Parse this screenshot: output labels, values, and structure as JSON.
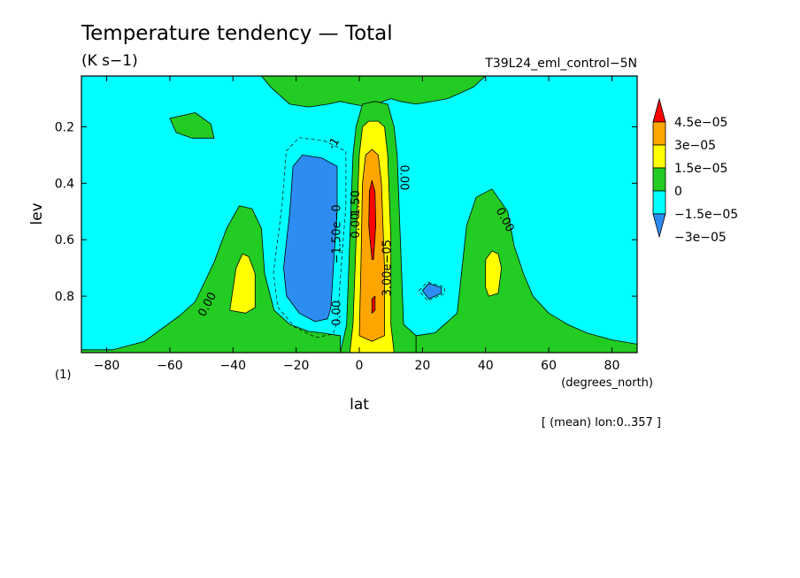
{
  "chart_data": {
    "type": "contour",
    "title": "Temperature tendency — Total",
    "units_label": "(K s−1)",
    "run_label": "T39L24_eml_control−5N",
    "xlabel": "lat",
    "x_units_label": "(degrees_north)",
    "ylabel": "lev",
    "y_units_label": "(1)",
    "footnote": "[ (mean) lon:0..357 ]",
    "xlim": [
      -88,
      88
    ],
    "ylim": [
      1.0,
      0.02
    ],
    "y_axis": "inverted",
    "x_ticks": [
      {
        "value": -80,
        "label": "−80"
      },
      {
        "value": -60,
        "label": "−60"
      },
      {
        "value": -40,
        "label": "−40"
      },
      {
        "value": -20,
        "label": "−20"
      },
      {
        "value": 0,
        "label": "0"
      },
      {
        "value": 20,
        "label": "20"
      },
      {
        "value": 40,
        "label": "40"
      },
      {
        "value": 60,
        "label": "60"
      },
      {
        "value": 80,
        "label": "80"
      }
    ],
    "y_ticks": [
      {
        "value": 0.2,
        "label": "0.2"
      },
      {
        "value": 0.4,
        "label": "0.4"
      },
      {
        "value": 0.6,
        "label": "0.6"
      },
      {
        "value": 0.8,
        "label": "0.8"
      }
    ],
    "colorbar": {
      "labels": [
        "4.5e−05",
        "3e−05",
        "1.5e−05",
        "0",
        "−1.5e−05",
        "−3e−05"
      ],
      "levels": [
        -3e-05,
        -1.5e-05,
        0,
        1.5e-05,
        3e-05,
        4.5e-05
      ],
      "colors": [
        "#2d8cf0",
        "#00ffff",
        "#22cc22",
        "#ffff00",
        "#ffa500",
        "#ff0000"
      ]
    },
    "contour_labels": [
      {
        "lat": -48,
        "lev": 0.83,
        "text": "0.00",
        "rotate": -62
      },
      {
        "lat": -7,
        "lev": 0.58,
        "text": "−1.50e−0",
        "rotate": -90
      },
      {
        "lat": -7,
        "lev": 0.86,
        "text": "0.00",
        "rotate": -90
      },
      {
        "lat": -8,
        "lev": 0.26,
        "text": "-1",
        "rotate": -60
      },
      {
        "lat": -1,
        "lev": 0.55,
        "text": "0.00",
        "rotate": -90
      },
      {
        "lat": -1,
        "lev": 0.47,
        "text": "1.50",
        "rotate": -90
      },
      {
        "lat": 9,
        "lev": 0.7,
        "text": "3.00e−05",
        "rotate": -90
      },
      {
        "lat": 14,
        "lev": 0.38,
        "text": "0.00",
        "rotate": 90
      },
      {
        "lat": 46,
        "lev": 0.53,
        "text": "0.00",
        "rotate": 62
      }
    ],
    "regions": [
      {
        "name": "green-top-band",
        "color": "#22cc22",
        "points": [
          [
            -31,
            0.02
          ],
          [
            40,
            0.02
          ],
          [
            36,
            0.06
          ],
          [
            28,
            0.1
          ],
          [
            18,
            0.12
          ],
          [
            13,
            0.11
          ],
          [
            10,
            0.1
          ],
          [
            5,
            0.12
          ],
          [
            3,
            0.13
          ],
          [
            -2,
            0.12
          ],
          [
            -6,
            0.11
          ],
          [
            -10,
            0.12
          ],
          [
            -16,
            0.13
          ],
          [
            -22,
            0.12
          ],
          [
            -28,
            0.06
          ]
        ]
      },
      {
        "name": "green-top-left-blob",
        "color": "#22cc22",
        "points": [
          [
            -60,
            0.17
          ],
          [
            -52,
            0.15
          ],
          [
            -47,
            0.19
          ],
          [
            -46,
            0.24
          ],
          [
            -53,
            0.24
          ],
          [
            -58,
            0.22
          ]
        ]
      },
      {
        "name": "green-left-mountain",
        "color": "#22cc22",
        "points": [
          [
            -88,
            0.99
          ],
          [
            -78,
            0.99
          ],
          [
            -68,
            0.96
          ],
          [
            -57,
            0.87
          ],
          [
            -52,
            0.82
          ],
          [
            -46,
            0.68
          ],
          [
            -42,
            0.56
          ],
          [
            -38,
            0.48
          ],
          [
            -34,
            0.49
          ],
          [
            -31,
            0.56
          ],
          [
            -30,
            0.72
          ],
          [
            -27,
            0.85
          ],
          [
            -22,
            0.9
          ],
          [
            -16,
            0.925
          ],
          [
            -12,
            0.93
          ],
          [
            -6,
            0.94
          ],
          [
            -6,
            1.0
          ],
          [
            -88,
            1.0
          ]
        ]
      },
      {
        "name": "green-equatorial-column",
        "color": "#22cc22",
        "points": [
          [
            -6,
            1.0
          ],
          [
            -4,
            0.9
          ],
          [
            -3,
            0.6
          ],
          [
            -2,
            0.3
          ],
          [
            -1,
            0.2
          ],
          [
            1,
            0.12
          ],
          [
            5,
            0.11
          ],
          [
            9,
            0.12
          ],
          [
            11,
            0.2
          ],
          [
            12,
            0.3
          ],
          [
            13,
            0.6
          ],
          [
            14,
            0.9
          ],
          [
            18,
            0.94
          ],
          [
            18,
            1.0
          ]
        ]
      },
      {
        "name": "green-right-mountain",
        "color": "#22cc22",
        "points": [
          [
            18,
            1.0
          ],
          [
            18,
            0.94
          ],
          [
            24,
            0.93
          ],
          [
            27,
            0.9
          ],
          [
            31,
            0.86
          ],
          [
            34,
            0.55
          ],
          [
            37,
            0.45
          ],
          [
            42,
            0.42
          ],
          [
            47,
            0.5
          ],
          [
            49,
            0.62
          ],
          [
            52,
            0.72
          ],
          [
            55,
            0.8
          ],
          [
            60,
            0.86
          ],
          [
            66,
            0.9
          ],
          [
            72,
            0.93
          ],
          [
            80,
            0.955
          ],
          [
            88,
            0.97
          ],
          [
            88,
            1.0
          ]
        ]
      },
      {
        "name": "yellow-equatorial",
        "color": "#ffff00",
        "points": [
          [
            -3,
            1.0
          ],
          [
            -2,
            0.9
          ],
          [
            -1,
            0.6
          ],
          [
            0,
            0.3
          ],
          [
            1,
            0.2
          ],
          [
            3,
            0.18
          ],
          [
            6,
            0.18
          ],
          [
            8,
            0.2
          ],
          [
            9,
            0.3
          ],
          [
            10,
            0.6
          ],
          [
            10,
            0.9
          ],
          [
            11,
            1.0
          ]
        ]
      },
      {
        "name": "yellow-left",
        "color": "#ffff00",
        "points": [
          [
            -41,
            0.85
          ],
          [
            -39,
            0.7
          ],
          [
            -37,
            0.65
          ],
          [
            -35,
            0.66
          ],
          [
            -33,
            0.72
          ],
          [
            -33,
            0.84
          ],
          [
            -36,
            0.86
          ]
        ]
      },
      {
        "name": "yellow-right",
        "color": "#ffff00",
        "points": [
          [
            40,
            0.77
          ],
          [
            40,
            0.67
          ],
          [
            42,
            0.64
          ],
          [
            44,
            0.65
          ],
          [
            45,
            0.7
          ],
          [
            44,
            0.79
          ],
          [
            41,
            0.8
          ]
        ]
      },
      {
        "name": "orange-equatorial",
        "color": "#ffa500",
        "points": [
          [
            0,
            0.94
          ],
          [
            0.5,
            0.7
          ],
          [
            1,
            0.4
          ],
          [
            2,
            0.3
          ],
          [
            4,
            0.28
          ],
          [
            6,
            0.3
          ],
          [
            7,
            0.4
          ],
          [
            8,
            0.7
          ],
          [
            8,
            0.94
          ],
          [
            4,
            0.96
          ]
        ]
      },
      {
        "name": "red-core",
        "color": "#ff0000",
        "points": [
          [
            4,
            0.67
          ],
          [
            3,
            0.55
          ],
          [
            3.2,
            0.43
          ],
          [
            4,
            0.39
          ],
          [
            5,
            0.43
          ],
          [
            5.2,
            0.55
          ],
          [
            4.5,
            0.67
          ]
        ]
      },
      {
        "name": "red-lower",
        "color": "#ff0000",
        "points": [
          [
            4,
            0.86
          ],
          [
            4,
            0.81
          ],
          [
            5,
            0.8
          ],
          [
            5,
            0.85
          ]
        ]
      },
      {
        "name": "blue-left",
        "color": "#2d8cf0",
        "points": [
          [
            -21,
            0.34
          ],
          [
            -18,
            0.3
          ],
          [
            -12,
            0.31
          ],
          [
            -7,
            0.34
          ],
          [
            -7,
            0.5
          ],
          [
            -8,
            0.66
          ],
          [
            -9,
            0.84
          ],
          [
            -10,
            0.88
          ],
          [
            -14,
            0.89
          ],
          [
            -19,
            0.86
          ],
          [
            -23,
            0.8
          ],
          [
            -24,
            0.7
          ],
          [
            -22,
            0.5
          ]
        ]
      },
      {
        "name": "blue-right",
        "color": "#2d8cf0",
        "points": [
          [
            20,
            0.78
          ],
          [
            22,
            0.755
          ],
          [
            26,
            0.77
          ],
          [
            26,
            0.79
          ],
          [
            22,
            0.81
          ]
        ]
      }
    ]
  }
}
